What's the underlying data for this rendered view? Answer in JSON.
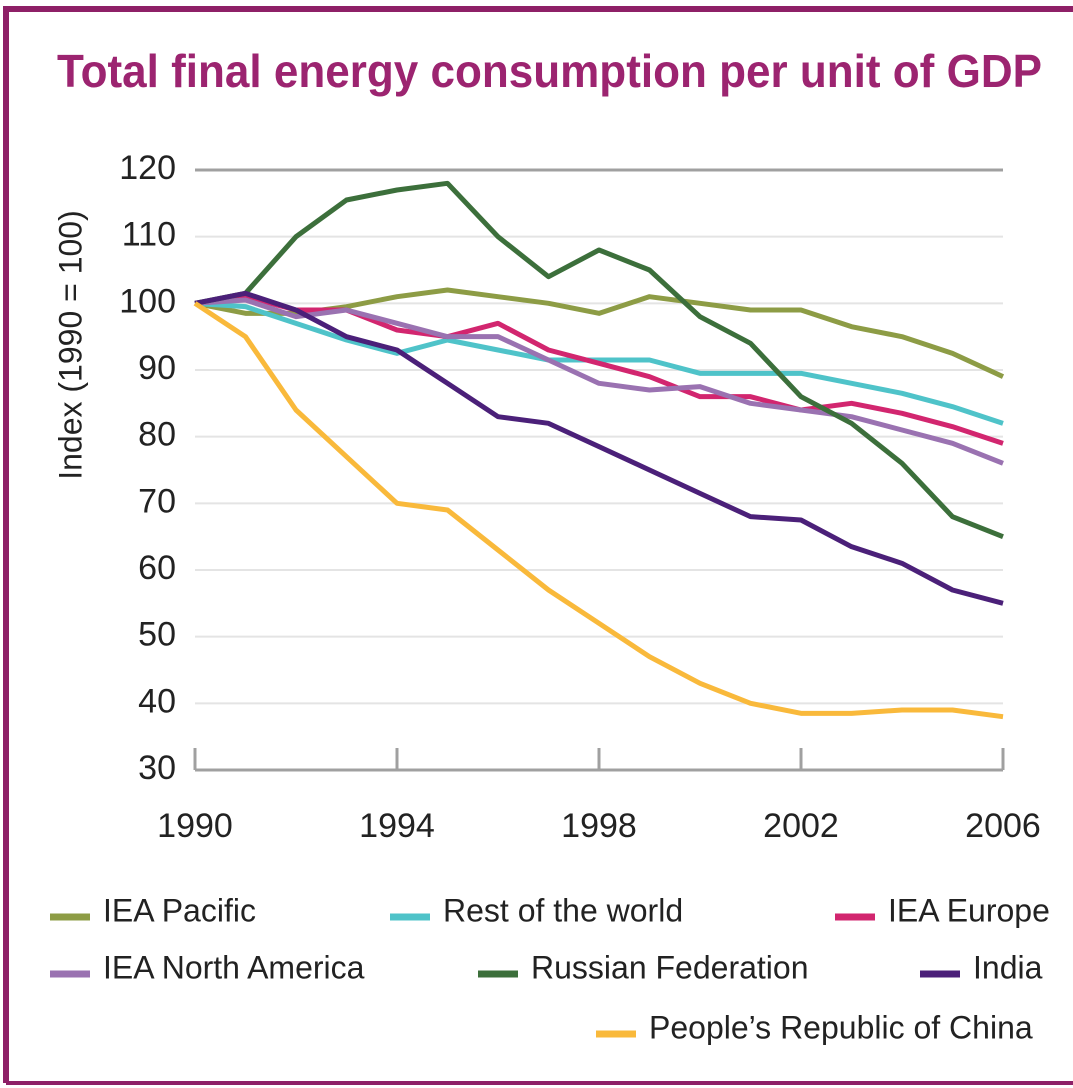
{
  "chart_data": {
    "type": "line",
    "title": "Total final energy consumption per unit of GDP",
    "y_label": "Index (1990 = 100)",
    "x": [
      1990,
      1991,
      1992,
      1993,
      1994,
      1995,
      1996,
      1997,
      1998,
      1999,
      2000,
      2001,
      2002,
      2003,
      2004,
      2005,
      2006
    ],
    "xlim": [
      1990,
      2006
    ],
    "xticks": [
      1990,
      1994,
      1998,
      2002,
      2006
    ],
    "ylim": [
      30,
      120
    ],
    "yticks": [
      30,
      40,
      50,
      60,
      70,
      80,
      90,
      100,
      110,
      120
    ],
    "grid": true,
    "legend": "bottom",
    "series": [
      {
        "name": "IEA Pacific",
        "color": "#8d9c45",
        "values": [
          100,
          98.5,
          98.5,
          99.5,
          101,
          102,
          101,
          100,
          98.5,
          101,
          100,
          99,
          99,
          96.5,
          95,
          92.5,
          89
        ]
      },
      {
        "name": "Rest of the world",
        "color": "#4fc3c9",
        "values": [
          100,
          99.5,
          97,
          94.5,
          92.5,
          94.5,
          93,
          91.5,
          91.5,
          91.5,
          89.5,
          89.5,
          89.5,
          88,
          86.5,
          84.5,
          82
        ]
      },
      {
        "name": "IEA Europe",
        "color": "#d2266f",
        "values": [
          100,
          101,
          99,
          99,
          96,
          95,
          97,
          93,
          91,
          89,
          86,
          86,
          84,
          85,
          83.5,
          81.5,
          79
        ]
      },
      {
        "name": "IEA North America",
        "color": "#9a72b1",
        "values": [
          100,
          100.5,
          98,
          99,
          97,
          95,
          95,
          91.5,
          88,
          87,
          87.5,
          85,
          84,
          83,
          81,
          79,
          76
        ]
      },
      {
        "name": "Russian Federation",
        "color": "#3c6f3b",
        "values": [
          100,
          101.5,
          110,
          115.5,
          117,
          118,
          110,
          104,
          108,
          105,
          98,
          94,
          86,
          82,
          76,
          68,
          65
        ]
      },
      {
        "name": "India",
        "color": "#4b2079",
        "values": [
          100,
          101.5,
          99,
          95,
          93,
          88,
          83,
          82,
          78.5,
          75,
          71.5,
          68,
          67.5,
          63.5,
          61,
          57,
          55
        ]
      },
      {
        "name": "People’s Republic of China",
        "color": "#f9b93b",
        "values": [
          100,
          95,
          84,
          77,
          70,
          69,
          63,
          57,
          52,
          47,
          43,
          40,
          38.5,
          38.5,
          39,
          39,
          38
        ]
      }
    ]
  }
}
